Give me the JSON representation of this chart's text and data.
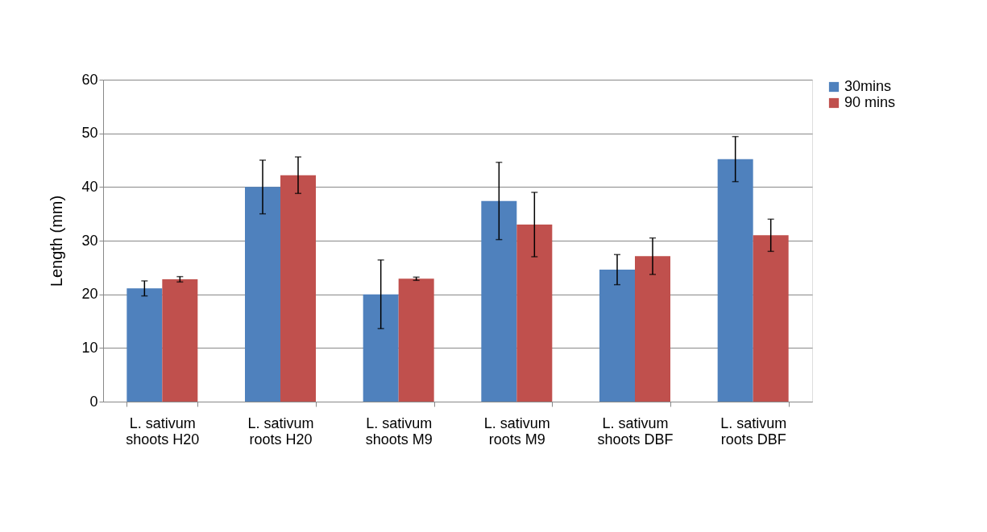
{
  "chart_data": {
    "type": "bar",
    "ylabel": "Length (mm)",
    "categories": [
      "L. sativum shoots H20",
      "L. sativum roots H20",
      "L. sativum shoots M9",
      "L. sativum roots M9",
      "L. sativum shoots DBF",
      "L. sativum roots DBF"
    ],
    "series": [
      {
        "name": "30mins",
        "color": "#4f81bd",
        "values": [
          21.1,
          40.0,
          20.0,
          37.4,
          24.6,
          45.2
        ],
        "errors": [
          1.4,
          5.0,
          6.4,
          7.2,
          2.8,
          4.2
        ]
      },
      {
        "name": "90 mins",
        "color": "#c0504d",
        "values": [
          22.8,
          42.2,
          22.9,
          33.0,
          27.1,
          31.0
        ],
        "errors": [
          0.5,
          3.4,
          0.3,
          6.0,
          3.4,
          3.0
        ]
      }
    ],
    "ylim": [
      0,
      60
    ],
    "yticks": [
      0,
      10,
      20,
      30,
      40,
      50,
      60
    ],
    "grid": "y",
    "legend": "right"
  }
}
